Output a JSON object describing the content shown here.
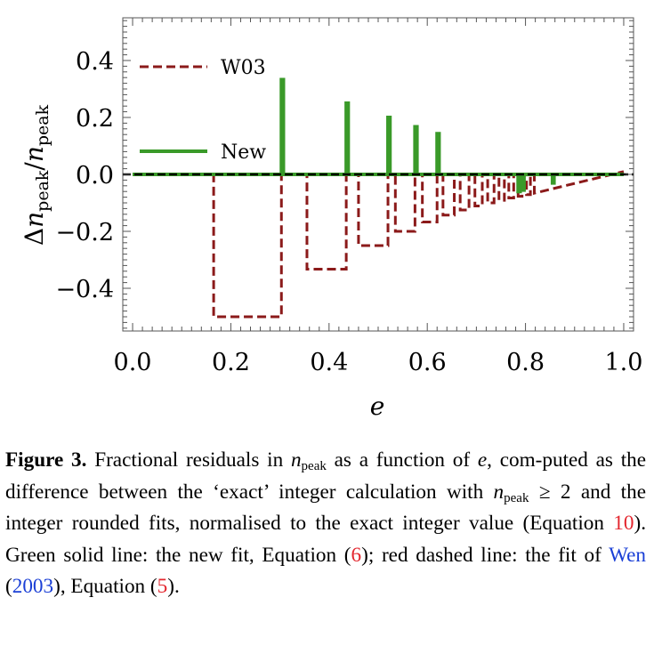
{
  "chart_data": {
    "type": "line",
    "xlabel": "e",
    "ylabel": "Δn_peak/n_peak",
    "xlim": [
      -0.02,
      1.02
    ],
    "ylim": [
      -0.55,
      0.55
    ],
    "x_ticks": [
      0.0,
      0.2,
      0.4,
      0.6,
      0.8,
      1.0
    ],
    "x_tick_labels": [
      "0.0",
      "0.2",
      "0.4",
      "0.6",
      "0.8",
      "1.0"
    ],
    "y_ticks": [
      0.4,
      0.2,
      0.0,
      -0.2,
      -0.4
    ],
    "y_tick_labels": [
      "0.4",
      "0.2",
      "0.0",
      "−0.2",
      "−0.4"
    ],
    "grid": false,
    "legend_position": "top-left",
    "series": [
      {
        "name": "W03",
        "style": "dashed",
        "color": "#8b1a1a",
        "x": [
          0,
          0.165,
          0.165,
          0.303,
          0.303,
          0.355,
          0.355,
          0.435,
          0.435,
          0.46,
          0.46,
          0.52,
          0.52,
          0.535,
          0.535,
          0.575,
          0.575,
          0.59,
          0.59,
          0.62,
          0.62,
          0.632,
          0.632,
          0.655,
          0.655,
          0.667,
          0.667,
          0.685,
          0.685,
          0.697,
          0.697,
          0.712,
          0.712,
          0.723,
          0.723,
          0.736,
          0.736,
          0.746,
          0.746,
          0.757,
          0.757,
          0.766,
          0.766,
          0.776,
          0.776,
          0.785,
          0.785,
          0.793,
          0.793,
          0.802,
          0.802,
          0.81,
          0.81,
          0.818,
          0.818,
          1.0
        ],
        "y": [
          0,
          0,
          -0.5,
          -0.5,
          0,
          0,
          -0.333,
          -0.333,
          0,
          0,
          -0.25,
          -0.25,
          0,
          0,
          -0.2,
          -0.2,
          0,
          0,
          -0.167,
          -0.167,
          0,
          0,
          -0.143,
          -0.143,
          0,
          0,
          -0.125,
          -0.125,
          0,
          0,
          -0.111,
          -0.111,
          0,
          0,
          -0.1,
          -0.1,
          0,
          0,
          -0.091,
          -0.091,
          0,
          0,
          -0.083,
          -0.083,
          0,
          0,
          -0.077,
          -0.077,
          0,
          0,
          -0.071,
          -0.071,
          0,
          0,
          -0.066,
          0.01
        ]
      },
      {
        "name": "New",
        "style": "solid",
        "color": "#3a9a29",
        "x": [
          0,
          0.303,
          0.303,
          0.307,
          0.307,
          0.435,
          0.435,
          0.439,
          0.439,
          0.52,
          0.52,
          0.524,
          0.524,
          0.575,
          0.575,
          0.579,
          0.579,
          0.62,
          0.62,
          0.624,
          0.624,
          0.785,
          0.785,
          0.789,
          0.789,
          0.793,
          0.793,
          0.797,
          0.797,
          0.855,
          0.855,
          0.858,
          0.858,
          1.0
        ],
        "y": [
          0,
          0,
          0.333,
          0.333,
          0,
          0,
          0.25,
          0.25,
          0,
          0,
          0.2,
          0.2,
          0,
          0,
          0.167,
          0.167,
          0,
          0,
          0.143,
          0.143,
          0,
          0,
          -0.06,
          -0.06,
          0,
          0,
          -0.055,
          -0.055,
          0,
          0,
          -0.03,
          -0.03,
          0,
          0
        ]
      },
      {
        "name": "",
        "style": "dashed",
        "color": "#000000",
        "x": [
          -0.02,
          1.02
        ],
        "y": [
          0,
          0
        ]
      }
    ]
  },
  "caption": {
    "label": "Figure 3.",
    "t1": "Fractional residuals in",
    "sym_n": "n",
    "sub_peak": "peak",
    "t2": "as a function of",
    "sym_e": "e",
    "t3": ", com-puted as the difference between the ‘exact’ integer calculation with",
    "t4": "≥ 2 and the integer rounded fits, normalised to the exact integer value (Equation",
    "ref_eq10": "10",
    "t5": "). Green solid line: the new fit, Equation (",
    "ref_eq6": "6",
    "t6": "); red dashed line: the fit of",
    "ref_wen": "Wen",
    "t7": "(",
    "ref_year": "2003",
    "t8": "), Equation (",
    "ref_eq5": "5",
    "t9": ")."
  }
}
